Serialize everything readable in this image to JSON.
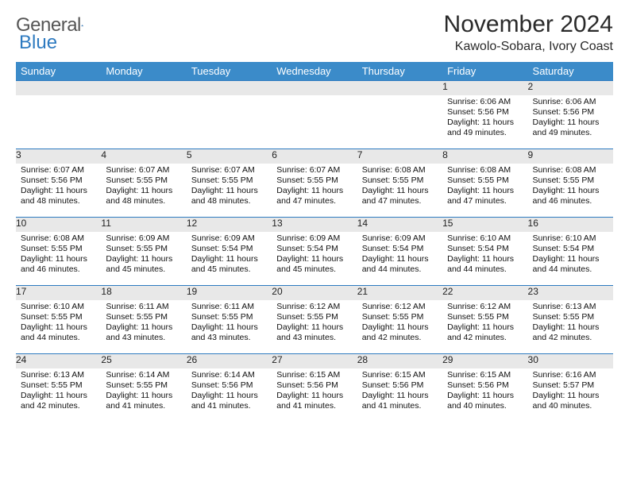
{
  "brand": {
    "word1": "General",
    "word2": "Blue"
  },
  "colors": {
    "brand_blue": "#2d7ac0",
    "header_bg": "#3b8bc9",
    "header_fg": "#ffffff",
    "daynum_bg": "#e8e8e8",
    "rule": "#2d7ac0",
    "text": "#111111"
  },
  "title": "November 2024",
  "location": "Kawolo-Sobara, Ivory Coast",
  "day_headers": [
    "Sunday",
    "Monday",
    "Tuesday",
    "Wednesday",
    "Thursday",
    "Friday",
    "Saturday"
  ],
  "weeks": [
    [
      {
        "n": "",
        "sr": "",
        "ss": "",
        "dl": ""
      },
      {
        "n": "",
        "sr": "",
        "ss": "",
        "dl": ""
      },
      {
        "n": "",
        "sr": "",
        "ss": "",
        "dl": ""
      },
      {
        "n": "",
        "sr": "",
        "ss": "",
        "dl": ""
      },
      {
        "n": "",
        "sr": "",
        "ss": "",
        "dl": ""
      },
      {
        "n": "1",
        "sr": "Sunrise: 6:06 AM",
        "ss": "Sunset: 5:56 PM",
        "dl": "Daylight: 11 hours and 49 minutes."
      },
      {
        "n": "2",
        "sr": "Sunrise: 6:06 AM",
        "ss": "Sunset: 5:56 PM",
        "dl": "Daylight: 11 hours and 49 minutes."
      }
    ],
    [
      {
        "n": "3",
        "sr": "Sunrise: 6:07 AM",
        "ss": "Sunset: 5:56 PM",
        "dl": "Daylight: 11 hours and 48 minutes."
      },
      {
        "n": "4",
        "sr": "Sunrise: 6:07 AM",
        "ss": "Sunset: 5:55 PM",
        "dl": "Daylight: 11 hours and 48 minutes."
      },
      {
        "n": "5",
        "sr": "Sunrise: 6:07 AM",
        "ss": "Sunset: 5:55 PM",
        "dl": "Daylight: 11 hours and 48 minutes."
      },
      {
        "n": "6",
        "sr": "Sunrise: 6:07 AM",
        "ss": "Sunset: 5:55 PM",
        "dl": "Daylight: 11 hours and 47 minutes."
      },
      {
        "n": "7",
        "sr": "Sunrise: 6:08 AM",
        "ss": "Sunset: 5:55 PM",
        "dl": "Daylight: 11 hours and 47 minutes."
      },
      {
        "n": "8",
        "sr": "Sunrise: 6:08 AM",
        "ss": "Sunset: 5:55 PM",
        "dl": "Daylight: 11 hours and 47 minutes."
      },
      {
        "n": "9",
        "sr": "Sunrise: 6:08 AM",
        "ss": "Sunset: 5:55 PM",
        "dl": "Daylight: 11 hours and 46 minutes."
      }
    ],
    [
      {
        "n": "10",
        "sr": "Sunrise: 6:08 AM",
        "ss": "Sunset: 5:55 PM",
        "dl": "Daylight: 11 hours and 46 minutes."
      },
      {
        "n": "11",
        "sr": "Sunrise: 6:09 AM",
        "ss": "Sunset: 5:55 PM",
        "dl": "Daylight: 11 hours and 45 minutes."
      },
      {
        "n": "12",
        "sr": "Sunrise: 6:09 AM",
        "ss": "Sunset: 5:54 PM",
        "dl": "Daylight: 11 hours and 45 minutes."
      },
      {
        "n": "13",
        "sr": "Sunrise: 6:09 AM",
        "ss": "Sunset: 5:54 PM",
        "dl": "Daylight: 11 hours and 45 minutes."
      },
      {
        "n": "14",
        "sr": "Sunrise: 6:09 AM",
        "ss": "Sunset: 5:54 PM",
        "dl": "Daylight: 11 hours and 44 minutes."
      },
      {
        "n": "15",
        "sr": "Sunrise: 6:10 AM",
        "ss": "Sunset: 5:54 PM",
        "dl": "Daylight: 11 hours and 44 minutes."
      },
      {
        "n": "16",
        "sr": "Sunrise: 6:10 AM",
        "ss": "Sunset: 5:54 PM",
        "dl": "Daylight: 11 hours and 44 minutes."
      }
    ],
    [
      {
        "n": "17",
        "sr": "Sunrise: 6:10 AM",
        "ss": "Sunset: 5:55 PM",
        "dl": "Daylight: 11 hours and 44 minutes."
      },
      {
        "n": "18",
        "sr": "Sunrise: 6:11 AM",
        "ss": "Sunset: 5:55 PM",
        "dl": "Daylight: 11 hours and 43 minutes."
      },
      {
        "n": "19",
        "sr": "Sunrise: 6:11 AM",
        "ss": "Sunset: 5:55 PM",
        "dl": "Daylight: 11 hours and 43 minutes."
      },
      {
        "n": "20",
        "sr": "Sunrise: 6:12 AM",
        "ss": "Sunset: 5:55 PM",
        "dl": "Daylight: 11 hours and 43 minutes."
      },
      {
        "n": "21",
        "sr": "Sunrise: 6:12 AM",
        "ss": "Sunset: 5:55 PM",
        "dl": "Daylight: 11 hours and 42 minutes."
      },
      {
        "n": "22",
        "sr": "Sunrise: 6:12 AM",
        "ss": "Sunset: 5:55 PM",
        "dl": "Daylight: 11 hours and 42 minutes."
      },
      {
        "n": "23",
        "sr": "Sunrise: 6:13 AM",
        "ss": "Sunset: 5:55 PM",
        "dl": "Daylight: 11 hours and 42 minutes."
      }
    ],
    [
      {
        "n": "24",
        "sr": "Sunrise: 6:13 AM",
        "ss": "Sunset: 5:55 PM",
        "dl": "Daylight: 11 hours and 42 minutes."
      },
      {
        "n": "25",
        "sr": "Sunrise: 6:14 AM",
        "ss": "Sunset: 5:55 PM",
        "dl": "Daylight: 11 hours and 41 minutes."
      },
      {
        "n": "26",
        "sr": "Sunrise: 6:14 AM",
        "ss": "Sunset: 5:56 PM",
        "dl": "Daylight: 11 hours and 41 minutes."
      },
      {
        "n": "27",
        "sr": "Sunrise: 6:15 AM",
        "ss": "Sunset: 5:56 PM",
        "dl": "Daylight: 11 hours and 41 minutes."
      },
      {
        "n": "28",
        "sr": "Sunrise: 6:15 AM",
        "ss": "Sunset: 5:56 PM",
        "dl": "Daylight: 11 hours and 41 minutes."
      },
      {
        "n": "29",
        "sr": "Sunrise: 6:15 AM",
        "ss": "Sunset: 5:56 PM",
        "dl": "Daylight: 11 hours and 40 minutes."
      },
      {
        "n": "30",
        "sr": "Sunrise: 6:16 AM",
        "ss": "Sunset: 5:57 PM",
        "dl": "Daylight: 11 hours and 40 minutes."
      }
    ]
  ]
}
